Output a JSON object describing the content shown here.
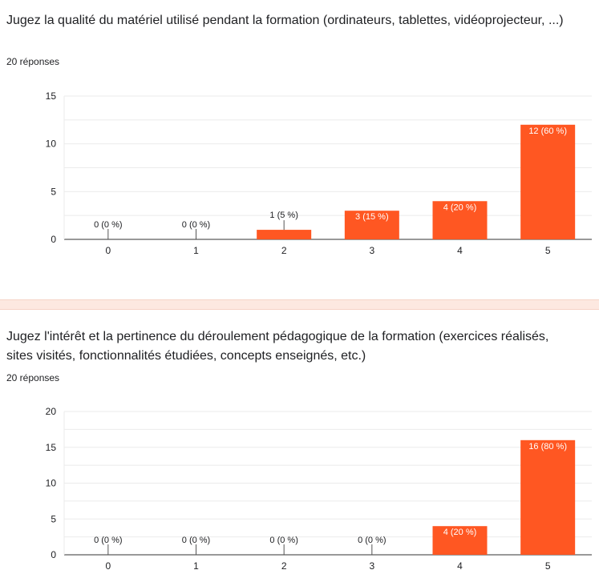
{
  "questions": [
    {
      "title": "Jugez la qualité du matériel utilisé pendant la formation (ordinateurs, tablettes, vidéoprojecteur, ...)",
      "responses": "20 réponses"
    },
    {
      "title": "Jugez l'intérêt et la pertinence du déroulement pédagogique de la formation (exercices réalisés, sites visités, fonctionnalités étudiées, concepts enseignés, etc.)",
      "responses": "20 réponses"
    }
  ],
  "colors": {
    "bar": "#ff5722",
    "separator": "#fde8e0"
  },
  "chart_data": [
    {
      "type": "bar",
      "categories": [
        "0",
        "1",
        "2",
        "3",
        "4",
        "5"
      ],
      "values": [
        0,
        0,
        1,
        3,
        4,
        12
      ],
      "data_labels": [
        "0 (0 %)",
        "0 (0 %)",
        "1 (5 %)",
        "3 (15 %)",
        "4 (20 %)",
        "12 (60 %)"
      ],
      "yticks": [
        0,
        5,
        10,
        15
      ],
      "ylim": [
        0,
        15
      ],
      "grid": true
    },
    {
      "type": "bar",
      "categories": [
        "0",
        "1",
        "2",
        "3",
        "4",
        "5"
      ],
      "values": [
        0,
        0,
        0,
        0,
        4,
        16
      ],
      "data_labels": [
        "0 (0 %)",
        "0 (0 %)",
        "0 (0 %)",
        "0 (0 %)",
        "4 (20 %)",
        "16 (80 %)"
      ],
      "yticks": [
        0,
        5,
        10,
        15,
        20
      ],
      "ylim": [
        0,
        20
      ],
      "grid": true
    }
  ]
}
